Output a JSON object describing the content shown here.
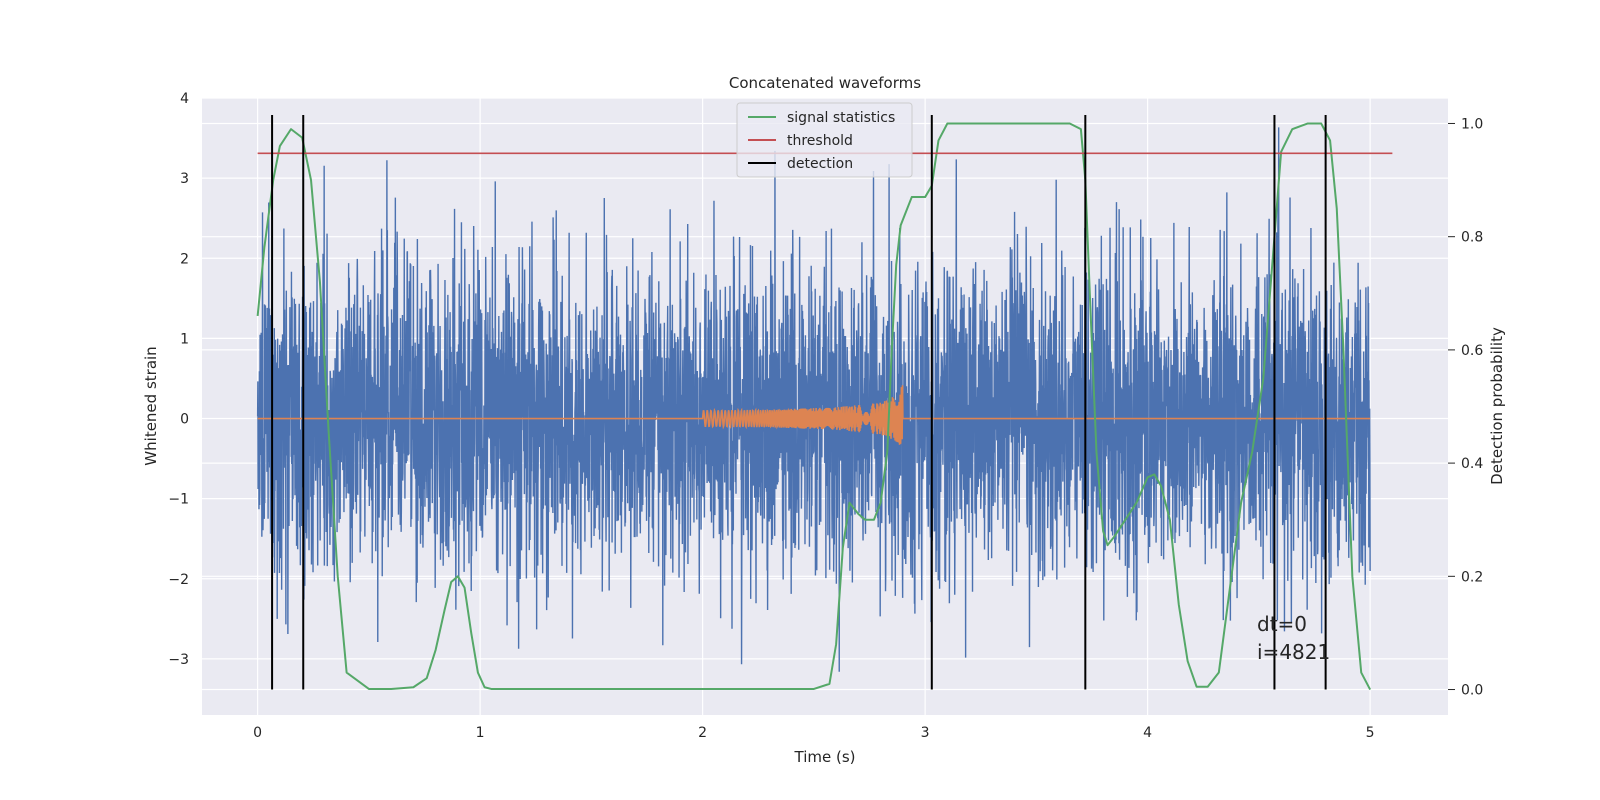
{
  "chart_data": {
    "type": "line",
    "title": "Concatenated waveforms",
    "xlabel": "Time (s)",
    "ylabel_left": "Whitened strain",
    "ylabel_right": "Detection probability",
    "xlim": [
      -0.25,
      5.35
    ],
    "ylim_left": [
      -3.7,
      4.0
    ],
    "ylim_right": [
      -0.045,
      1.045
    ],
    "x_ticks": [
      0,
      1,
      2,
      3,
      4,
      5
    ],
    "y_ticks_left": [
      -3,
      -2,
      -1,
      0,
      1,
      2,
      3,
      4
    ],
    "y_ticks_right": [
      0.0,
      0.2,
      0.4,
      0.6,
      0.8,
      1.0
    ],
    "x_tick_labels": [
      "0",
      "1",
      "2",
      "3",
      "4",
      "5"
    ],
    "y_tick_labels_left": [
      "−3",
      "−2",
      "−1",
      "0",
      "1",
      "2",
      "3",
      "4"
    ],
    "y_tick_labels_right": [
      "0.0",
      "0.2",
      "0.4",
      "0.6",
      "0.8",
      "1.0"
    ],
    "grid": true,
    "legend_position": "top-center",
    "legend": [
      {
        "label": "signal statistics",
        "color": "#55a868"
      },
      {
        "label": "threshold",
        "color": "#c44e52"
      },
      {
        "label": "detection",
        "color": "#000000"
      }
    ],
    "series": [
      {
        "label": "whitened strain (noise)",
        "color": "#4c72b0",
        "x_range": [
          0,
          5
        ],
        "envelope_range": [
          -3.2,
          3.7
        ]
      },
      {
        "label": "injected waveform",
        "color": "#dd8452",
        "x": [
          0,
          2.0,
          2.0,
          2.3,
          2.6,
          2.8,
          2.88,
          2.9,
          2.9,
          5.0
        ],
        "amplitude": [
          0,
          0,
          0.1,
          0.11,
          0.14,
          0.2,
          0.3,
          0.45,
          0,
          0
        ]
      },
      {
        "label": "signal statistics",
        "color": "#55a868",
        "axis": "right",
        "x": [
          0.0,
          0.03,
          0.07,
          0.1,
          0.15,
          0.2,
          0.24,
          0.28,
          0.32,
          0.36,
          0.4,
          0.5,
          0.6,
          0.7,
          0.76,
          0.8,
          0.84,
          0.87,
          0.9,
          0.93,
          0.96,
          0.99,
          1.02,
          1.05,
          1.1,
          1.5,
          2.0,
          2.5,
          2.57,
          2.6,
          2.63,
          2.66,
          2.7,
          2.73,
          2.77,
          2.8,
          2.83,
          2.85,
          2.87,
          2.89,
          2.91,
          2.94,
          2.97,
          3.0,
          3.03,
          3.06,
          3.1,
          3.3,
          3.5,
          3.65,
          3.7,
          3.72,
          3.74,
          3.77,
          3.8,
          3.82,
          3.85,
          3.9,
          3.95,
          4.0,
          4.03,
          4.06,
          4.1,
          4.14,
          4.18,
          4.22,
          4.27,
          4.32,
          4.37,
          4.42,
          4.47,
          4.52,
          4.57,
          4.6,
          4.65,
          4.72,
          4.78,
          4.82,
          4.85,
          4.88,
          4.92,
          4.96,
          5.0
        ],
        "y": [
          0.66,
          0.78,
          0.9,
          0.96,
          0.99,
          0.975,
          0.9,
          0.72,
          0.45,
          0.2,
          0.03,
          0.001,
          0.001,
          0.004,
          0.02,
          0.07,
          0.14,
          0.19,
          0.2,
          0.18,
          0.1,
          0.03,
          0.004,
          0.001,
          0.001,
          0.001,
          0.001,
          0.001,
          0.01,
          0.08,
          0.25,
          0.33,
          0.31,
          0.3,
          0.3,
          0.33,
          0.42,
          0.6,
          0.75,
          0.82,
          0.84,
          0.87,
          0.87,
          0.87,
          0.89,
          0.97,
          1.0,
          1.0,
          1.0,
          1.0,
          0.99,
          0.9,
          0.7,
          0.42,
          0.28,
          0.255,
          0.27,
          0.3,
          0.33,
          0.375,
          0.38,
          0.36,
          0.3,
          0.15,
          0.05,
          0.005,
          0.005,
          0.03,
          0.18,
          0.33,
          0.42,
          0.55,
          0.8,
          0.95,
          0.99,
          1.0,
          1.0,
          0.97,
          0.85,
          0.6,
          0.2,
          0.03,
          0.0
        ]
      },
      {
        "label": "threshold",
        "color": "#c44e52",
        "axis": "left",
        "x": [
          0,
          5.1
        ],
        "y": [
          3.31,
          3.31
        ]
      }
    ],
    "detections_x": [
      0.065,
      0.205,
      3.03,
      3.72,
      4.57,
      4.8
    ],
    "annotations": [
      "dt=0",
      "i=4821"
    ]
  }
}
